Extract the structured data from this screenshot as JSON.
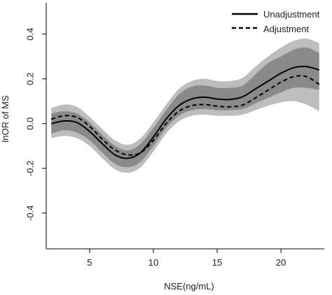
{
  "chart_data": {
    "type": "line",
    "title": "",
    "xlabel": "NSE(ng/mL)",
    "ylabel": "lnOR of MS",
    "xlim": [
      1.6,
      23.4
    ],
    "ylim": [
      -0.56,
      0.54
    ],
    "x_ticks": [
      5,
      10,
      15,
      20
    ],
    "y_ticks": [
      -0.4,
      -0.2,
      0.0,
      0.2,
      0.4
    ],
    "x_tick_labels": [
      "5",
      "10",
      "15",
      "20"
    ],
    "y_tick_labels": [
      "-0.4",
      "-0.2",
      "0.0",
      "0.2",
      "0.4"
    ],
    "grid": false,
    "legend_position": "top-right",
    "x": [
      2,
      3,
      4,
      5,
      6,
      7,
      8,
      9,
      10,
      11,
      12,
      13,
      14,
      15,
      16,
      17,
      18,
      19,
      20,
      21,
      22,
      23
    ],
    "series": [
      {
        "name": "Unadjustment",
        "line_style": "solid",
        "values": [
          0.0,
          0.012,
          0.005,
          -0.035,
          -0.09,
          -0.14,
          -0.155,
          -0.13,
          -0.06,
          0.02,
          0.08,
          0.11,
          0.118,
          0.11,
          0.108,
          0.12,
          0.155,
          0.19,
          0.225,
          0.25,
          0.255,
          0.24
        ],
        "band_inner_upper": [
          0.045,
          0.055,
          0.045,
          0.005,
          -0.05,
          -0.1,
          -0.12,
          -0.09,
          -0.02,
          0.06,
          0.13,
          0.165,
          0.17,
          0.16,
          0.16,
          0.17,
          0.22,
          0.27,
          0.3,
          0.33,
          0.34,
          0.315
        ],
        "band_inner_lower": [
          -0.045,
          -0.03,
          -0.04,
          -0.075,
          -0.13,
          -0.18,
          -0.195,
          -0.17,
          -0.1,
          -0.02,
          0.035,
          0.06,
          0.065,
          0.06,
          0.06,
          0.065,
          0.09,
          0.115,
          0.14,
          0.16,
          0.16,
          0.15
        ],
        "band_outer_upper": [
          0.07,
          0.085,
          0.075,
          0.03,
          -0.025,
          -0.075,
          -0.095,
          -0.065,
          0.005,
          0.085,
          0.155,
          0.19,
          0.2,
          0.19,
          0.19,
          0.205,
          0.255,
          0.3,
          0.34,
          0.37,
          0.38,
          0.36
        ],
        "band_outer_lower": [
          -0.065,
          -0.055,
          -0.065,
          -0.1,
          -0.155,
          -0.205,
          -0.22,
          -0.195,
          -0.125,
          -0.045,
          0.01,
          0.035,
          0.04,
          0.035,
          0.035,
          0.04,
          0.06,
          0.08,
          0.095,
          0.1,
          0.085,
          0.055
        ]
      },
      {
        "name": "Adjustment",
        "line_style": "dashed",
        "values": [
          0.02,
          0.035,
          0.028,
          -0.012,
          -0.07,
          -0.118,
          -0.14,
          -0.13,
          -0.075,
          0.0,
          0.055,
          0.08,
          0.085,
          0.078,
          0.075,
          0.083,
          0.115,
          0.15,
          0.185,
          0.21,
          0.21,
          0.175
        ]
      }
    ],
    "colors": {
      "band_outer": "#bdbdbd",
      "band_inner": "#8a8a8a",
      "line": "#000000",
      "axis": "#000000"
    }
  }
}
